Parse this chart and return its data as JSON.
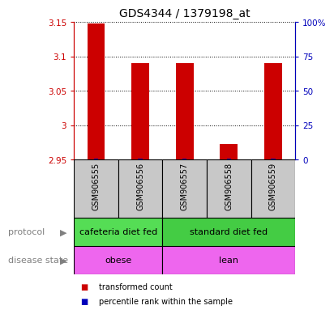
{
  "title": "GDS4344 / 1379198_at",
  "samples": [
    "GSM906555",
    "GSM906556",
    "GSM906557",
    "GSM906558",
    "GSM906559"
  ],
  "transformed_counts": [
    3.148,
    3.09,
    3.09,
    2.973,
    3.09
  ],
  "ymin": 2.95,
  "ymax": 3.15,
  "yticks": [
    2.95,
    3.0,
    3.05,
    3.1,
    3.15
  ],
  "ytick_labels": [
    "2.95",
    "3",
    "3.05",
    "3.1",
    "3.15"
  ],
  "right_yticks": [
    0,
    25,
    50,
    75,
    100
  ],
  "right_ytick_labels": [
    "0",
    "25",
    "50",
    "75",
    "100%"
  ],
  "protocol_groups": [
    {
      "label": "cafeteria diet fed",
      "samples": [
        0,
        1
      ],
      "color": "#55dd55"
    },
    {
      "label": "standard diet fed",
      "samples": [
        2,
        3,
        4
      ],
      "color": "#44cc44"
    }
  ],
  "disease_groups": [
    {
      "label": "obese",
      "samples": [
        0,
        1
      ],
      "color": "#ee66ee"
    },
    {
      "label": "lean",
      "samples": [
        2,
        3,
        4
      ],
      "color": "#ee66ee"
    }
  ],
  "bar_color": "#cc0000",
  "percentile_color": "#0000bb",
  "bar_width": 0.4,
  "percentile_bar_width": 0.1,
  "background_label": "#c8c8c8",
  "grid_color": "#000000",
  "left_axis_color": "#cc0000",
  "right_axis_color": "#0000bb",
  "legend_red_label": "transformed count",
  "legend_blue_label": "percentile rank within the sample",
  "protocol_row_label": "protocol",
  "disease_row_label": "disease state",
  "title_fontsize": 10,
  "tick_fontsize": 7.5,
  "label_fontsize": 8,
  "sample_label_fontsize": 7
}
